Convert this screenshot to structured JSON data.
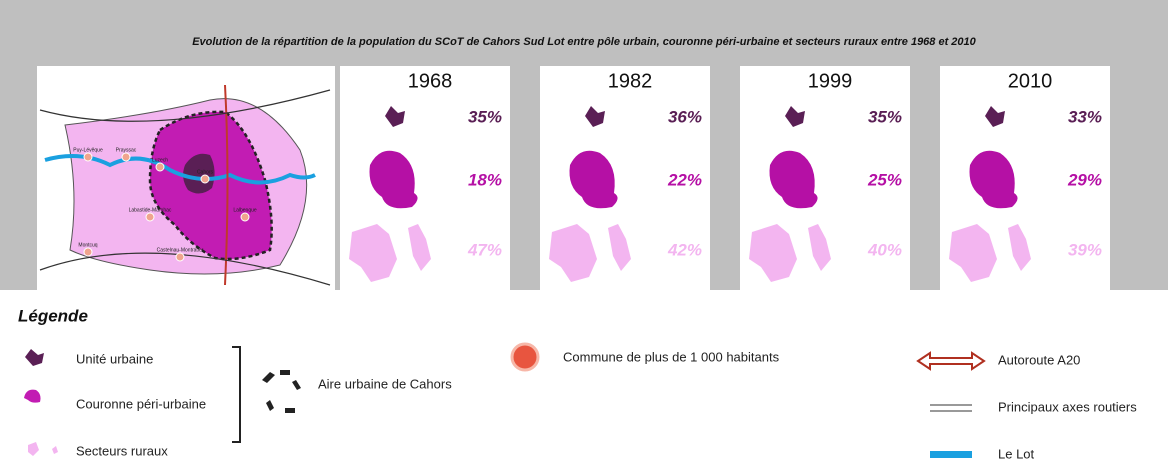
{
  "header": {
    "title": "Evolution de la répartition de la population du SCoT de Cahors Sud Lot entre pôle urbain, couronne péri-urbaine et secteurs ruraux entre 1968 et 2010"
  },
  "map": {
    "places": [
      "Puy-Lévêque",
      "Prayssac",
      "Luzech",
      "Cahors",
      "Labastide-Marnhac",
      "Lalbenque",
      "Montcuq",
      "Castelnau-Montratier"
    ]
  },
  "panels": [
    {
      "year": "1968",
      "shares": [
        "35%",
        "18%",
        "47%"
      ]
    },
    {
      "year": "1982",
      "shares": [
        "36%",
        "22%",
        "42%"
      ]
    },
    {
      "year": "1999",
      "shares": [
        "35%",
        "25%",
        "40%"
      ]
    },
    {
      "year": "2010",
      "shares": [
        "33%",
        "29%",
        "39%"
      ]
    }
  ],
  "legend": {
    "title": "Légende",
    "items": [
      "Unité urbaine",
      "Couronne péri-urbaine",
      "Secteurs ruraux",
      "Aire urbaine de Cahors",
      "Commune de plus de 1 000 habitants",
      "Autoroute A20",
      "Principaux axes routiers",
      "Le Lot"
    ]
  }
}
